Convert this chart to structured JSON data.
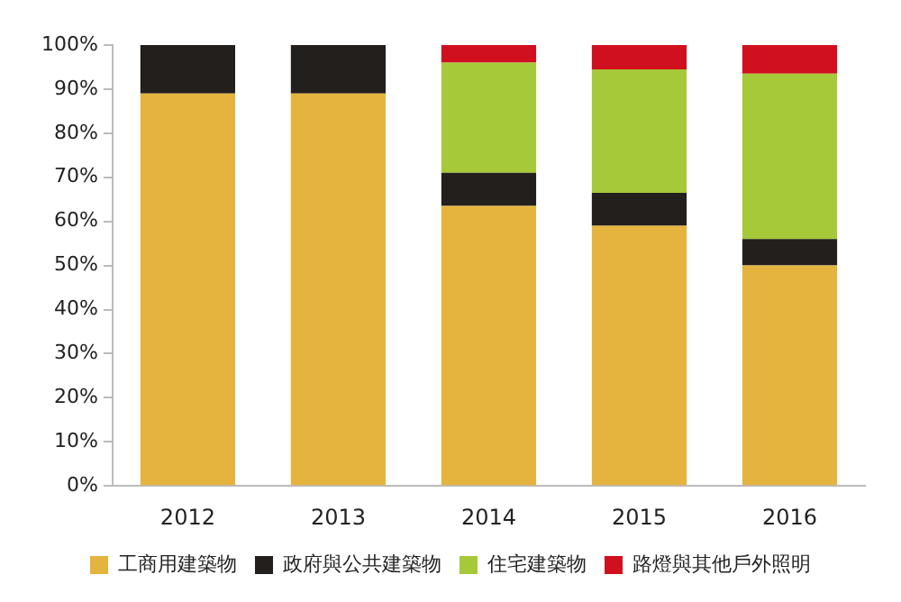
{
  "chart_data": {
    "type": "bar",
    "stacked": true,
    "categories": [
      "2012",
      "2013",
      "2014",
      "2015",
      "2016"
    ],
    "series": [
      {
        "name": "工商用建築物",
        "color": "#e5b43e",
        "values": [
          89,
          89,
          63.5,
          59,
          50
        ]
      },
      {
        "name": "政府與公共建築物",
        "color": "#231f1c",
        "values": [
          11,
          11,
          7.5,
          7.5,
          6
        ]
      },
      {
        "name": "住宅建築物",
        "color": "#a6c93a",
        "values": [
          null,
          null,
          25,
          28,
          37.5
        ]
      },
      {
        "name": "路燈與其他戶外照明",
        "color": "#d0101e",
        "values": [
          null,
          null,
          4,
          5.5,
          6.5
        ]
      }
    ],
    "ylim": [
      0,
      100
    ],
    "yticks": [
      {
        "value": 0,
        "label": "0%"
      },
      {
        "value": 10,
        "label": "10%"
      },
      {
        "value": 20,
        "label": "20%"
      },
      {
        "value": 30,
        "label": "30%"
      },
      {
        "value": 40,
        "label": "40%"
      },
      {
        "value": 50,
        "label": "50%"
      },
      {
        "value": 60,
        "label": "60%"
      },
      {
        "value": 70,
        "label": "70%"
      },
      {
        "value": 80,
        "label": "80%"
      },
      {
        "value": 90,
        "label": "90%"
      },
      {
        "value": 100,
        "label": "100%"
      }
    ],
    "grid": false,
    "legend": "bottom"
  }
}
